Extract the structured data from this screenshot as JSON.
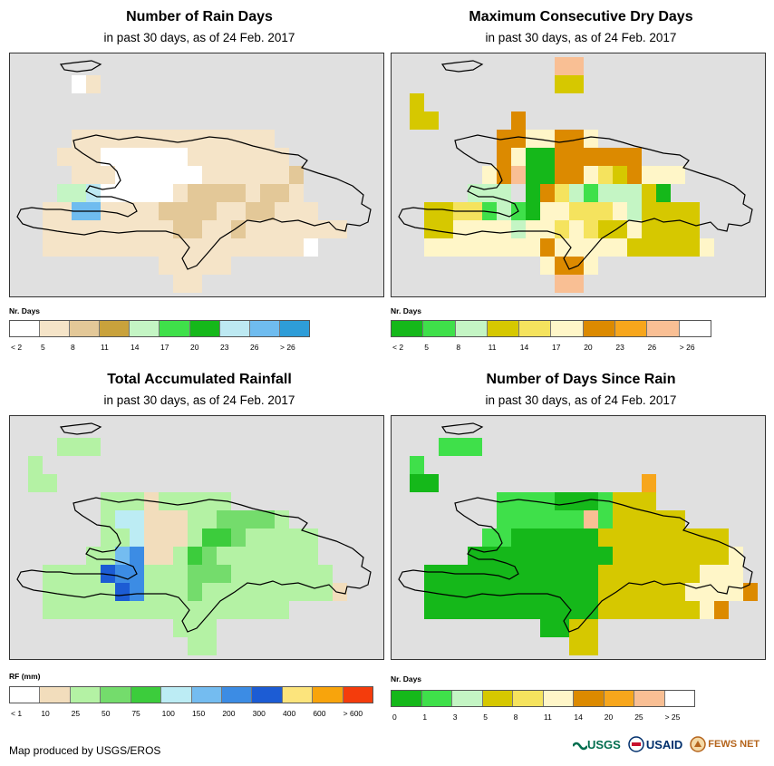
{
  "panels": [
    {
      "title": "Number of Rain Days",
      "subtitle": "in past 30 days, as of 24 Feb. 2017",
      "legend_title": "Nr. Days",
      "colors": [
        "#ffffff",
        "#f5e4c8",
        "#e3c898",
        "#c9a23c",
        "#c4f5c4",
        "#3fe04a",
        "#15b81a",
        "#bde9f2",
        "#6fbcef",
        "#2e9dd8"
      ],
      "ticks": [
        "< 2",
        "5",
        "8",
        "11",
        "14",
        "17",
        "20",
        "23",
        "26",
        "> 26"
      ],
      "map_cells": "rain_days"
    },
    {
      "title": "Maximum Consecutive Dry Days",
      "subtitle": "in past 30 days, as of 24 Feb. 2017",
      "legend_title": "Nr. Days",
      "colors": [
        "#15b81a",
        "#3fe04a",
        "#c4f5c4",
        "#d6c800",
        "#f5e35e",
        "#fff6c8",
        "#dc8a00",
        "#f7a61c",
        "#f9bf94",
        "#ffffff"
      ],
      "ticks": [
        "< 2",
        "5",
        "8",
        "11",
        "14",
        "17",
        "20",
        "23",
        "26",
        "> 26"
      ],
      "map_cells": "dry_days"
    },
    {
      "title": "Total Accumulated Rainfall",
      "subtitle": "in past 30 days, as of 24 Feb. 2017",
      "legend_title": "RF (mm)",
      "colors": [
        "#ffffff",
        "#f2ddbc",
        "#b4f2a4",
        "#74dc6c",
        "#3ccc3c",
        "#bcecf4",
        "#74bcf0",
        "#3c8ce4",
        "#1c5cd4",
        "#fce47c",
        "#f8a40c",
        "#f43c0c"
      ],
      "ticks": [
        "< 1",
        "10",
        "25",
        "50",
        "75",
        "100",
        "150",
        "200",
        "300",
        "400",
        "600",
        "> 600"
      ],
      "map_cells": "rainfall"
    },
    {
      "title": "Number of Days Since Rain",
      "subtitle": "in past 30 days, as of 24 Feb. 2017",
      "legend_title": "Nr. Days",
      "colors": [
        "#15b81a",
        "#3fe04a",
        "#c4f5c4",
        "#d6c800",
        "#f5e35e",
        "#fff6c8",
        "#dc8a00",
        "#f7a61c",
        "#f9bf94",
        "#ffffff"
      ],
      "ticks": [
        "0",
        "1",
        "3",
        "5",
        "8",
        "11",
        "14",
        "20",
        "25",
        "> 25"
      ],
      "map_cells": "since_rain"
    }
  ],
  "footer": "Map produced by USGS/EROS",
  "logos": {
    "usgs": "USGS",
    "usaid": "USAID",
    "fews": "FEWS NET"
  },
  "colors": {
    "map_background": "#e0e0e0"
  }
}
